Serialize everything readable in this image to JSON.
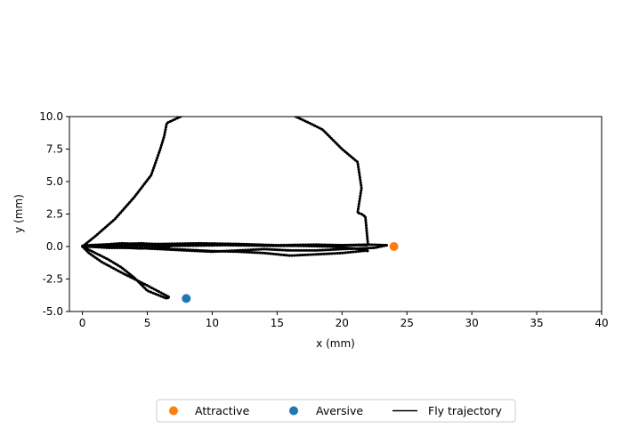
{
  "chart_data": {
    "type": "scatter",
    "xlabel": "x (mm)",
    "ylabel": "y (mm)",
    "xlim": [
      -1,
      40
    ],
    "ylim": [
      -5,
      10
    ],
    "x_ticks": [
      "0",
      "5",
      "10",
      "15",
      "20",
      "25",
      "30",
      "35",
      "40"
    ],
    "y_ticks": [
      "-5.0",
      "-2.5",
      "0.0",
      "2.5",
      "5.0",
      "7.5",
      "10.0"
    ],
    "grid": false,
    "legend_position": "bottom-center",
    "points": [
      {
        "name": "Attractive",
        "x": 24,
        "y": 0,
        "color": "#ff7f0e"
      },
      {
        "name": "Aversive",
        "x": 8,
        "y": -4,
        "color": "#1f77b4"
      }
    ],
    "series": [
      {
        "name": "Fly trajectory",
        "color": "#000000",
        "x": [
          0,
          0.5,
          1.5,
          3,
          4.5,
          5.5,
          6.5,
          7,
          6.6,
          5.8,
          5,
          4.5,
          3.5,
          2.5,
          1.5,
          1,
          0.5,
          0,
          0.3,
          0.5,
          3,
          6,
          9,
          12,
          15,
          18,
          20,
          22,
          23.5,
          22.5,
          20,
          18,
          16,
          14,
          12,
          10,
          8,
          6,
          4,
          2,
          0.5,
          0,
          1,
          3,
          6,
          10,
          14,
          17,
          19,
          21,
          22,
          22,
          21.5,
          20,
          18,
          16,
          14,
          12,
          10,
          8,
          6,
          4,
          2,
          0,
          0.5,
          3,
          7,
          11,
          15,
          19,
          22,
          21.8,
          21.5,
          21.2,
          21.5,
          21.2,
          20,
          19,
          18.5,
          17.5,
          16,
          13,
          11,
          9,
          8,
          6.5,
          6.3,
          6,
          5.3,
          4,
          2.5,
          1,
          0
        ],
        "y": [
          0,
          0.1,
          0.15,
          0.2,
          0.25,
          0.2,
          0.15,
          0.1,
          -0.05,
          -0.1,
          -0.1,
          -0.15,
          -0.1,
          -0.05,
          0,
          0,
          0.05,
          0,
          0.1,
          0.05,
          0.1,
          0.2,
          0.25,
          0.2,
          0.1,
          0.15,
          0.1,
          0.15,
          0.1,
          -0.1,
          -0.2,
          -0.3,
          -0.3,
          -0.2,
          -0.3,
          -0.4,
          -0.3,
          -0.2,
          -0.1,
          -0.1,
          0,
          0.05,
          0.1,
          0.25,
          0.15,
          0.2,
          0.1,
          0.05,
          0,
          -0.15,
          -0.35,
          -0.3,
          -0.35,
          -0.5,
          -0.6,
          -0.7,
          -0.5,
          -0.4,
          -0.35,
          -0.25,
          -0.15,
          -0.1,
          -0.05,
          0,
          0.05,
          0.1,
          0.05,
          0.1,
          0.05,
          0.1,
          0.1,
          2.3,
          2.5,
          2.6,
          4.5,
          6.5,
          7.5,
          8.5,
          9,
          9.5,
          10.2,
          10.5,
          10.6,
          10.5,
          10.2,
          9.5,
          8.5,
          7.5,
          5.5,
          3.8,
          2.1,
          0.8,
          0
        ]
      },
      {
        "name": "",
        "color": "#000000",
        "x": [
          0,
          1,
          2,
          3,
          4,
          5,
          6,
          6.5,
          6.7,
          5,
          3,
          1.5,
          0.5,
          0
        ],
        "y": [
          0,
          -0.5,
          -1,
          -1.6,
          -2.4,
          -3.4,
          -3.8,
          -4,
          -3.9,
          -3,
          -2,
          -1.2,
          -0.5,
          0
        ]
      }
    ]
  }
}
